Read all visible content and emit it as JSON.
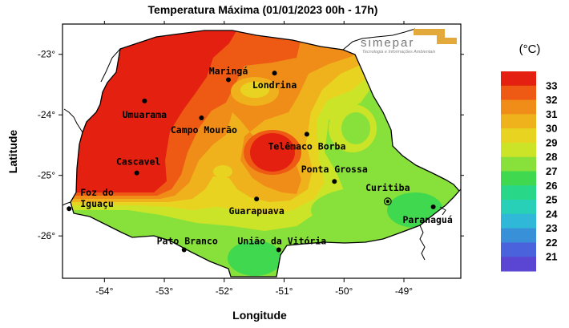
{
  "title": "Temperatura Máxima (01/01/2023 00h - 17h)",
  "axis": {
    "xlabel": "Longitude",
    "ylabel": "Latitude",
    "x_ticks": [
      "-54°",
      "-53°",
      "-52°",
      "-51°",
      "-50°",
      "-49°"
    ],
    "y_ticks": [
      "-23°",
      "-24°",
      "-25°",
      "-26°"
    ]
  },
  "logo": {
    "name": "SIMEPAR",
    "text": "simepar",
    "tagline": "Tecnologia e Informações Ambientais"
  },
  "legend": {
    "unit": "(°C)",
    "levels": [
      "33",
      "32",
      "31",
      "30",
      "29",
      "28",
      "27",
      "26",
      "25",
      "24",
      "23",
      "22",
      "21"
    ],
    "colors": [
      "#e42010",
      "#ee5a14",
      "#f08c18",
      "#efb21c",
      "#e8d420",
      "#cce428",
      "#88e03a",
      "#40d84e",
      "#28d888",
      "#28d0b8",
      "#30b8d8",
      "#3890d8",
      "#4a62dc",
      "#5a46d2"
    ]
  },
  "chart_data": {
    "type": "heatmap",
    "title": "Temperatura Máxima (01/01/2023 00h - 17h)",
    "xlabel": "Longitude",
    "ylabel": "Latitude",
    "xlim": [
      -54.7,
      -48.05
    ],
    "ylim": [
      -26.7,
      -22.5
    ],
    "legend_position": "right",
    "unit": "(°C)",
    "cities": [
      {
        "name": "Maringá",
        "lon": -51.93,
        "lat": -23.42
      },
      {
        "name": "Londrina",
        "lon": -51.16,
        "lat": -23.31
      },
      {
        "name": "Umuarama",
        "lon": -53.33,
        "lat": -23.77
      },
      {
        "name": "Campo Mourão",
        "lon": -52.38,
        "lat": -24.05
      },
      {
        "name": "Telêmaco Borba",
        "lon": -50.62,
        "lat": -24.32
      },
      {
        "name": "Cascavel",
        "lon": -53.46,
        "lat": -24.96
      },
      {
        "name": "Ponta Grossa",
        "lon": -50.16,
        "lat": -25.1
      },
      {
        "name": "Foz do Iguaçu",
        "lon": -54.59,
        "lat": -25.55
      },
      {
        "name": "Guarapuava",
        "lon": -51.46,
        "lat": -25.39
      },
      {
        "name": "Curitiba",
        "lon": -49.27,
        "lat": -25.43
      },
      {
        "name": "Paranaguá",
        "lon": -48.51,
        "lat": -25.52
      },
      {
        "name": "União da Vitória",
        "lon": -51.09,
        "lat": -26.23
      },
      {
        "name": "Pato Branco",
        "lon": -52.67,
        "lat": -26.23
      }
    ]
  }
}
